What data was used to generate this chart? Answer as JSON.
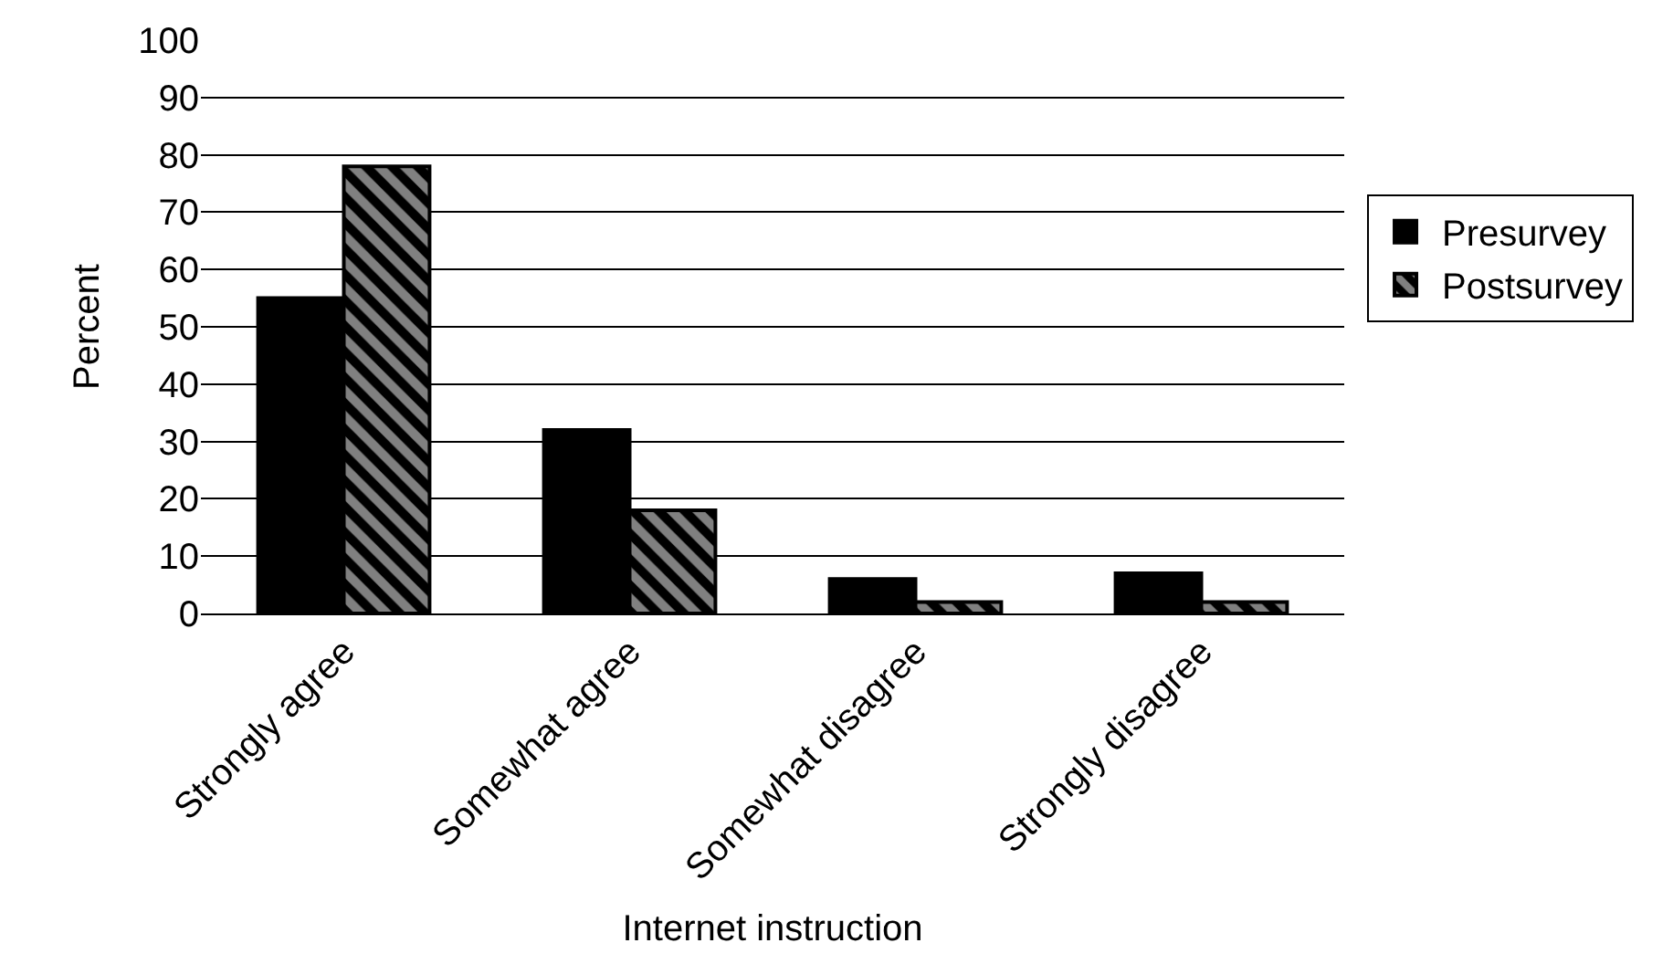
{
  "chart_data": {
    "type": "bar",
    "xlabel": "Internet instruction",
    "ylabel": "Percent",
    "categories": [
      "Strongly agree",
      "Somewhat agree",
      "Somewhat disagree",
      "Strongly disagree"
    ],
    "series": [
      {
        "name": "Presurvey",
        "color": "#000000",
        "values": [
          55,
          32,
          6,
          7
        ]
      },
      {
        "name": "Postsurvey",
        "color": "#000000",
        "values": [
          78,
          18,
          2,
          2
        ]
      }
    ],
    "ylim": [
      0,
      100
    ],
    "yticks": [
      0,
      10,
      20,
      30,
      40,
      50,
      60,
      70,
      80,
      90,
      100
    ],
    "grid": "y",
    "legend": "right"
  }
}
